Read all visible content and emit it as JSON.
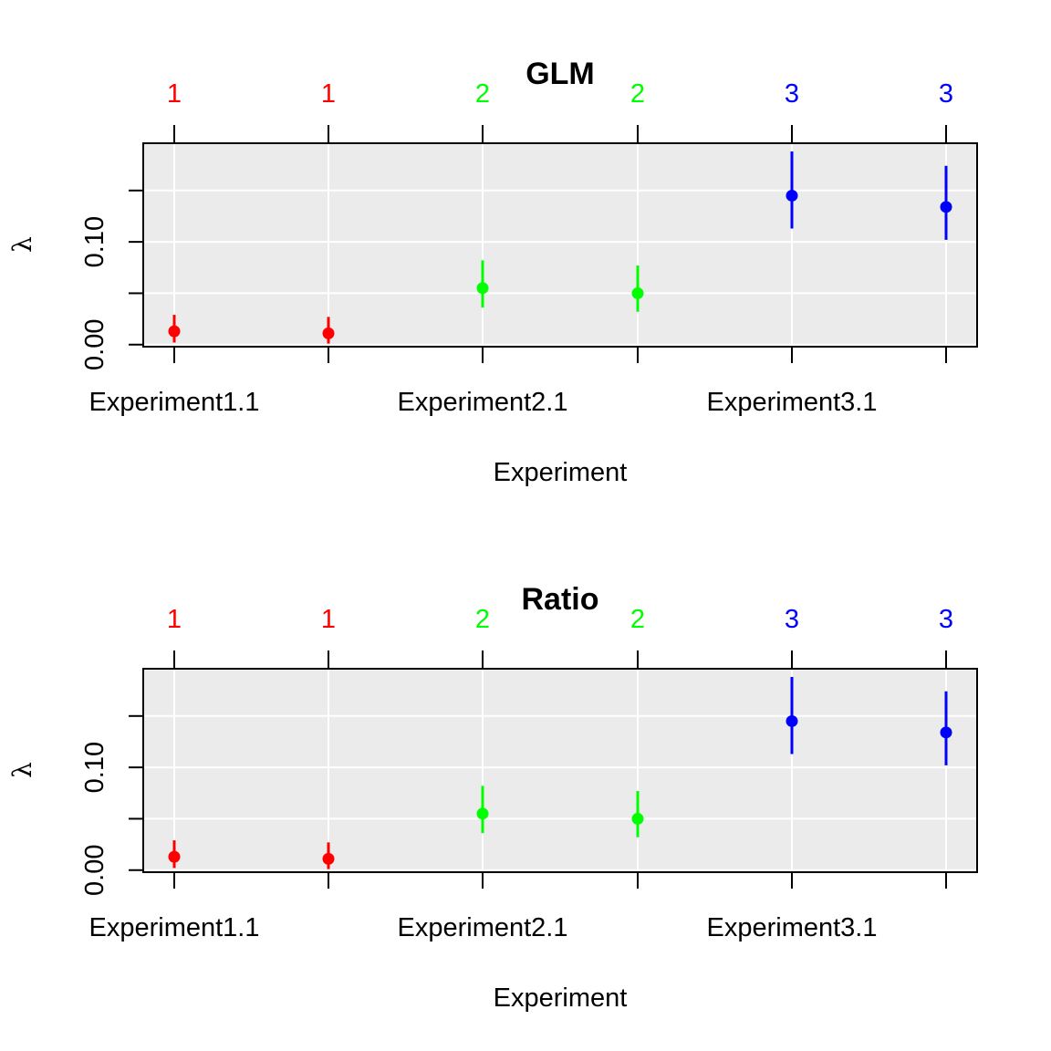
{
  "chart_data": [
    {
      "type": "scatter",
      "title": "GLM",
      "xlabel": "Experiment",
      "ylabel": "λ",
      "categories": [
        "Experiment1.1",
        "",
        "Experiment2.1",
        "",
        "Experiment3.1",
        ""
      ],
      "top_labels": [
        "1",
        "1",
        "2",
        "2",
        "3",
        "3"
      ],
      "groups": [
        1,
        1,
        2,
        2,
        3,
        3
      ],
      "group_colors": {
        "1": "#ff0000",
        "2": "#00ff00",
        "3": "#0000ff"
      },
      "values": [
        0.013,
        0.011,
        0.055,
        0.05,
        0.145,
        0.134
      ],
      "lower": [
        0.002,
        0.001,
        0.036,
        0.032,
        0.113,
        0.102
      ],
      "upper": [
        0.029,
        0.027,
        0.082,
        0.077,
        0.188,
        0.174
      ],
      "yticks": [
        "0.00",
        "0.10"
      ],
      "ytick_values": [
        0.0,
        0.1
      ],
      "ygrid": [
        0.0,
        0.05,
        0.1,
        0.15
      ],
      "ylim": [
        -0.002,
        0.196
      ],
      "grid": true,
      "background": "#ebebeb",
      "grid_color": "#ffffff"
    },
    {
      "type": "scatter",
      "title": "Ratio",
      "xlabel": "Experiment",
      "ylabel": "λ",
      "categories": [
        "Experiment1.1",
        "",
        "Experiment2.1",
        "",
        "Experiment3.1",
        ""
      ],
      "top_labels": [
        "1",
        "1",
        "2",
        "2",
        "3",
        "3"
      ],
      "groups": [
        1,
        1,
        2,
        2,
        3,
        3
      ],
      "group_colors": {
        "1": "#ff0000",
        "2": "#00ff00",
        "3": "#0000ff"
      },
      "values": [
        0.013,
        0.011,
        0.055,
        0.05,
        0.145,
        0.134
      ],
      "lower": [
        0.002,
        0.001,
        0.036,
        0.032,
        0.113,
        0.102
      ],
      "upper": [
        0.029,
        0.027,
        0.082,
        0.077,
        0.188,
        0.174
      ],
      "yticks": [
        "0.00",
        "0.10"
      ],
      "ytick_values": [
        0.0,
        0.1
      ],
      "ygrid": [
        0.0,
        0.05,
        0.1,
        0.15
      ],
      "ylim": [
        -0.002,
        0.196
      ],
      "grid": true,
      "background": "#ebebeb",
      "grid_color": "#ffffff"
    }
  ]
}
